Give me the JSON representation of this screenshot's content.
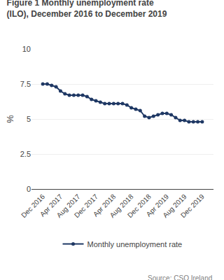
{
  "chart_data": {
    "type": "line",
    "title": "Figure 1 Monthly unemployment rate",
    "subtitle": "(ILO), December 2016 to December 2019",
    "ylabel": "%",
    "annotations": [
      "Source: CSO Ireland"
    ],
    "categories": [
      "Dec 2016",
      null,
      null,
      null,
      "Apr 2017",
      null,
      null,
      null,
      "Aug 2017",
      null,
      null,
      null,
      "Dec 2017",
      null,
      null,
      null,
      "Apr 2018",
      null,
      null,
      null,
      "Aug 2018",
      null,
      null,
      null,
      "Dec 2018",
      null,
      null,
      null,
      "Apr 2019",
      null,
      null,
      null,
      "Aug 2019",
      null,
      null,
      null,
      "Dec 2019"
    ],
    "series": [
      {
        "name": "Monthly unemployment rate",
        "color": "#1f3864",
        "marker": "circle",
        "values": [
          7.5,
          7.5,
          7.4,
          7.3,
          7.0,
          6.8,
          6.7,
          6.7,
          6.7,
          6.7,
          6.6,
          6.4,
          6.3,
          6.2,
          6.1,
          6.1,
          6.1,
          6.1,
          6.1,
          6.0,
          5.8,
          5.7,
          5.6,
          5.2,
          5.1,
          5.2,
          5.3,
          5.4,
          5.4,
          5.3,
          5.1,
          4.9,
          4.9,
          4.8,
          4.8,
          4.8,
          4.8
        ]
      }
    ],
    "ylim": [
      0,
      10
    ],
    "yticks": [
      0,
      2.5,
      5,
      7.5,
      10
    ],
    "grid": true,
    "legend": "bottom"
  }
}
